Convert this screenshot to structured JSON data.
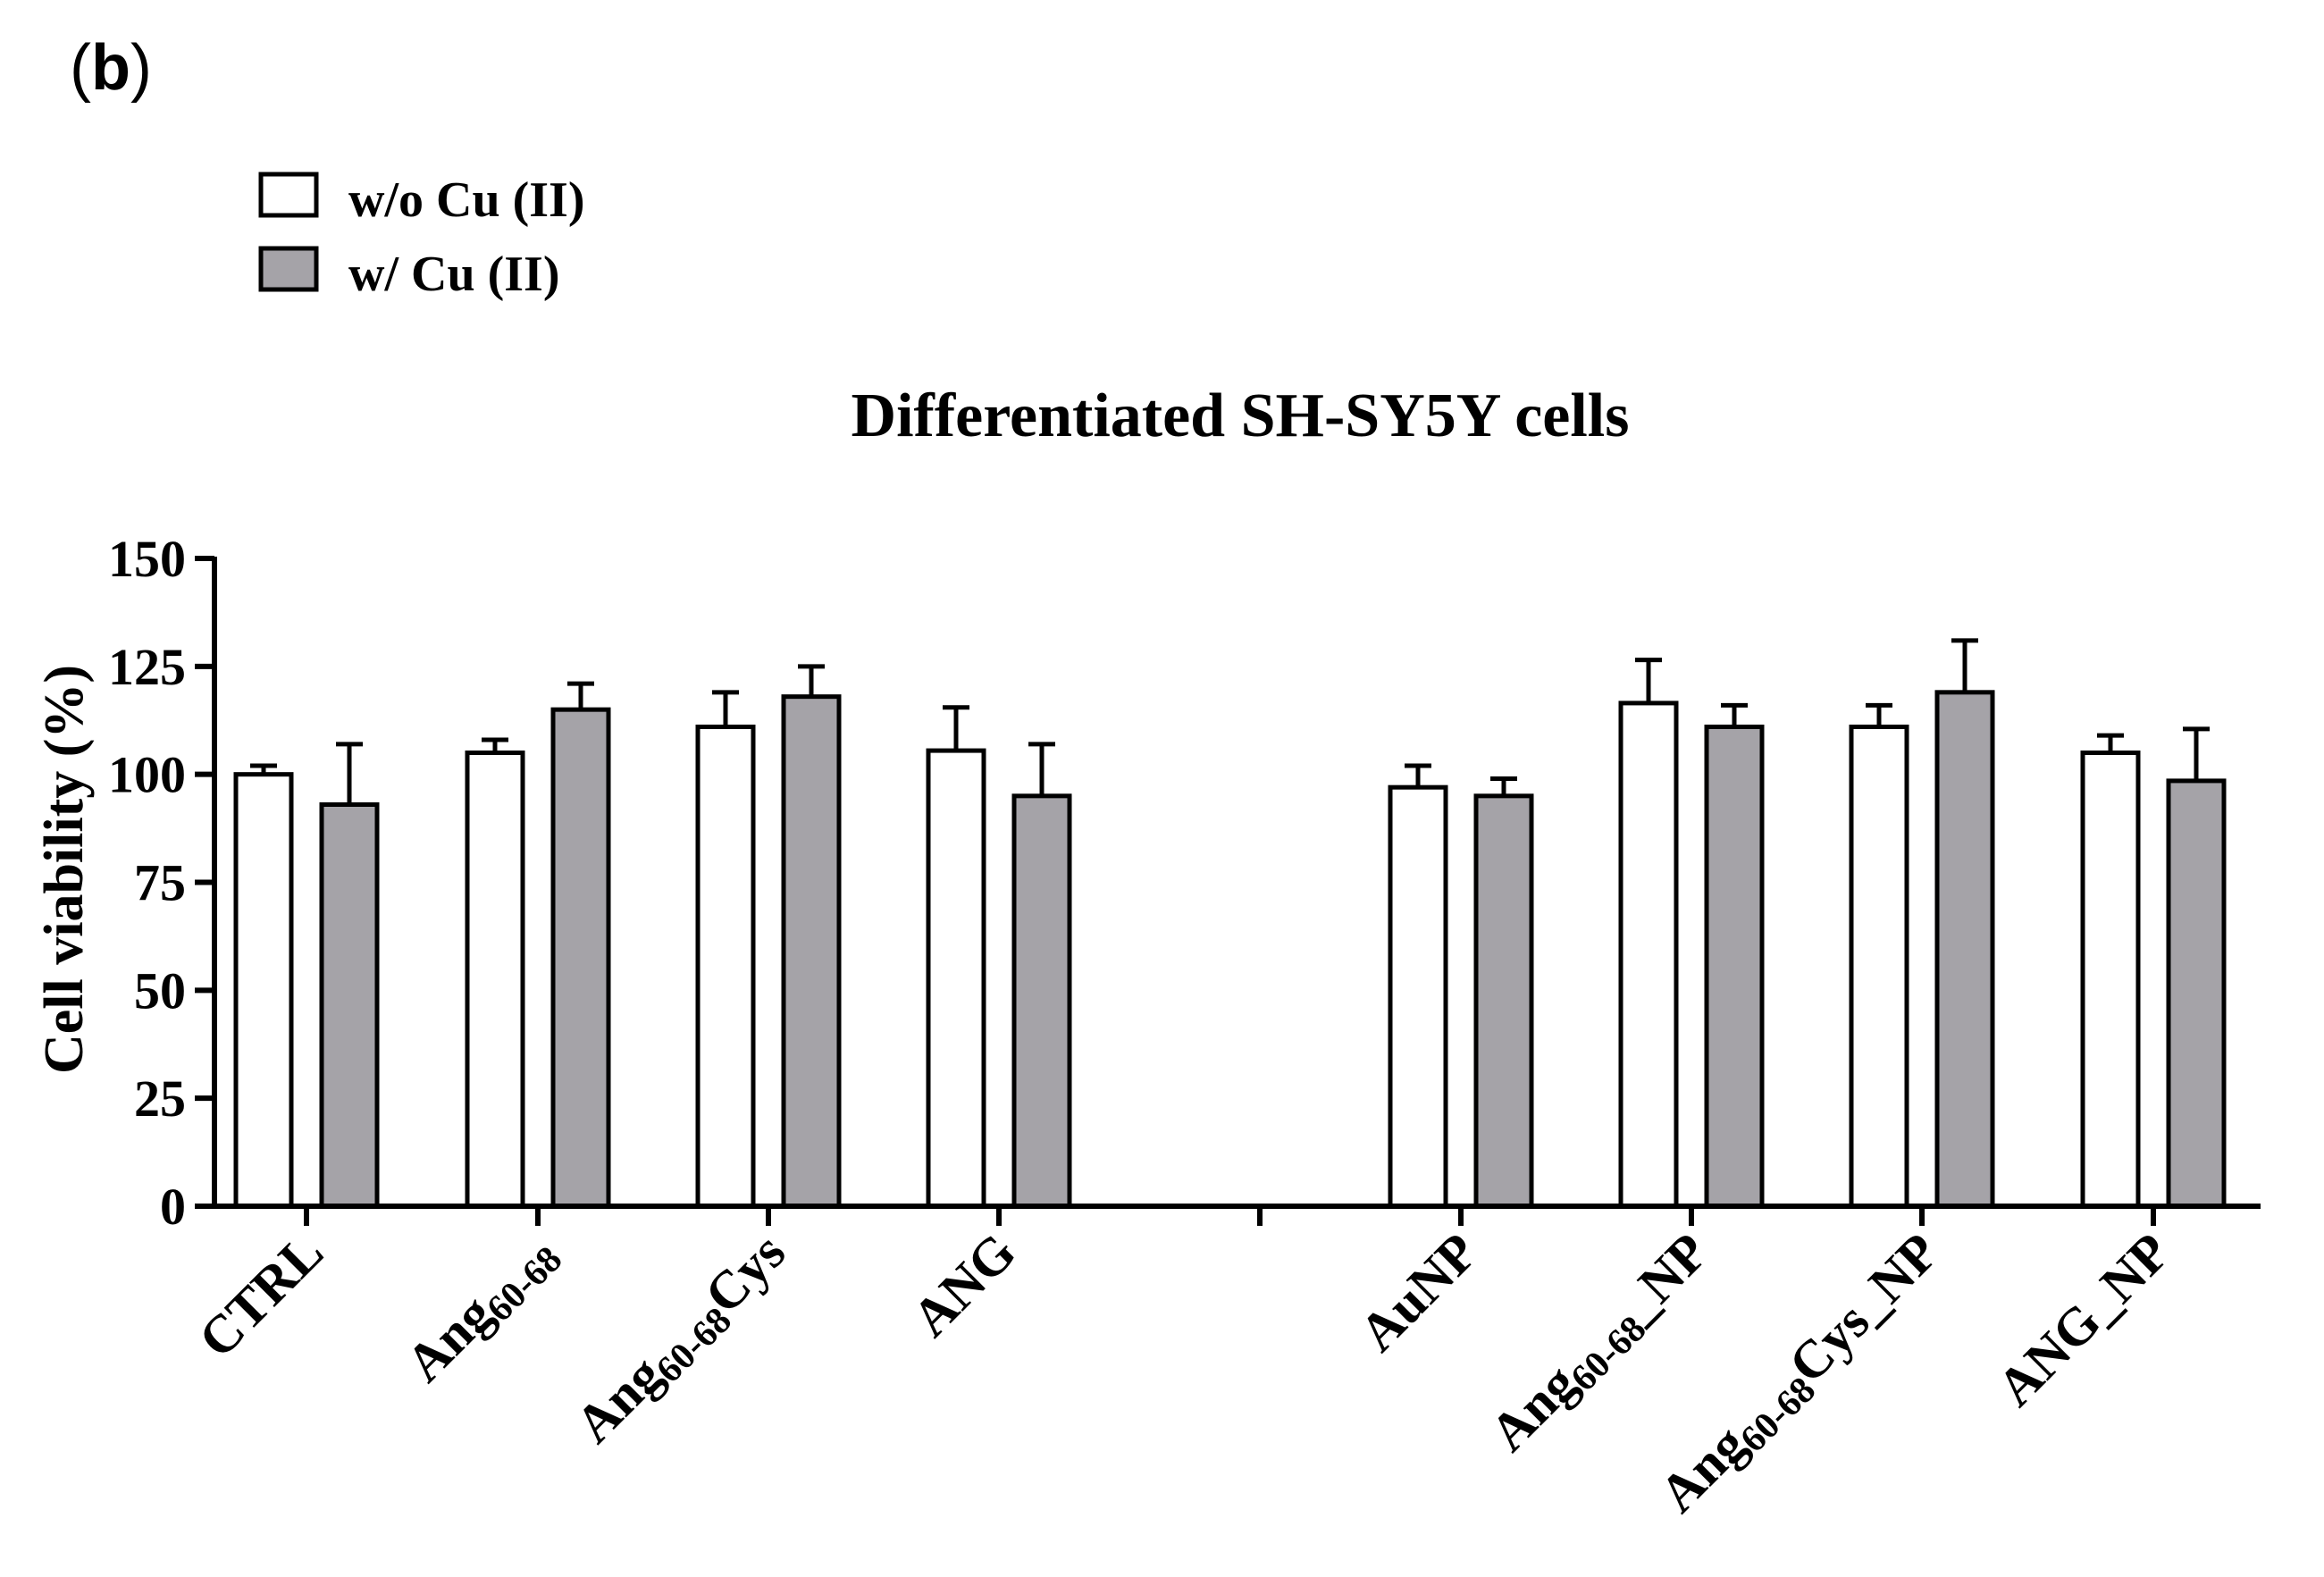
{
  "panel_label": "b",
  "colors": {
    "without_cu": "#ffffff",
    "with_cu": "#a5a3a8",
    "stroke": "#000000"
  },
  "chart_data": {
    "type": "bar",
    "title": "Differentiated SH-SY5Y cells",
    "xlabel": "",
    "ylabel": "Cell viability (%)",
    "ylim": [
      0,
      150
    ],
    "yticks": [
      "0",
      "25",
      "50",
      "75",
      "100",
      "125",
      "150"
    ],
    "legend_position": "top-left",
    "categories": [
      {
        "name": "CTRL",
        "base": "CTRL",
        "sub": "",
        "suffix": ""
      },
      {
        "name": "Ang60-68",
        "base": "Ang",
        "sub": "60-68",
        "suffix": ""
      },
      {
        "name": "Ang60-68Cys",
        "base": "Ang",
        "sub": "60-68",
        "suffix": "Cys"
      },
      {
        "name": "ANG",
        "base": "ANG",
        "sub": "",
        "suffix": ""
      },
      {
        "name": "AuNP",
        "base": "AuNP",
        "sub": "",
        "suffix": ""
      },
      {
        "name": "Ang60-68_NP",
        "base": "Ang",
        "sub": "60-68",
        "suffix": "_NP"
      },
      {
        "name": "Ang60-68Cys_NP",
        "base": "Ang",
        "sub": "60-68",
        "suffix": "Cys_NP"
      },
      {
        "name": "ANG_NP",
        "base": "ANG_NP",
        "sub": "",
        "suffix": ""
      }
    ],
    "series": [
      {
        "name": "w/o Cu (II)",
        "values": [
          100,
          105,
          111,
          105.5,
          97,
          116.5,
          111,
          105
        ],
        "errors": [
          2,
          3,
          8,
          10,
          5,
          10,
          5,
          4
        ]
      },
      {
        "name": "w/ Cu (II)",
        "values": [
          93,
          115,
          118,
          95,
          95,
          111,
          119,
          98.5
        ],
        "errors": [
          14,
          6,
          7,
          12,
          4,
          5,
          12,
          12
        ]
      }
    ]
  }
}
